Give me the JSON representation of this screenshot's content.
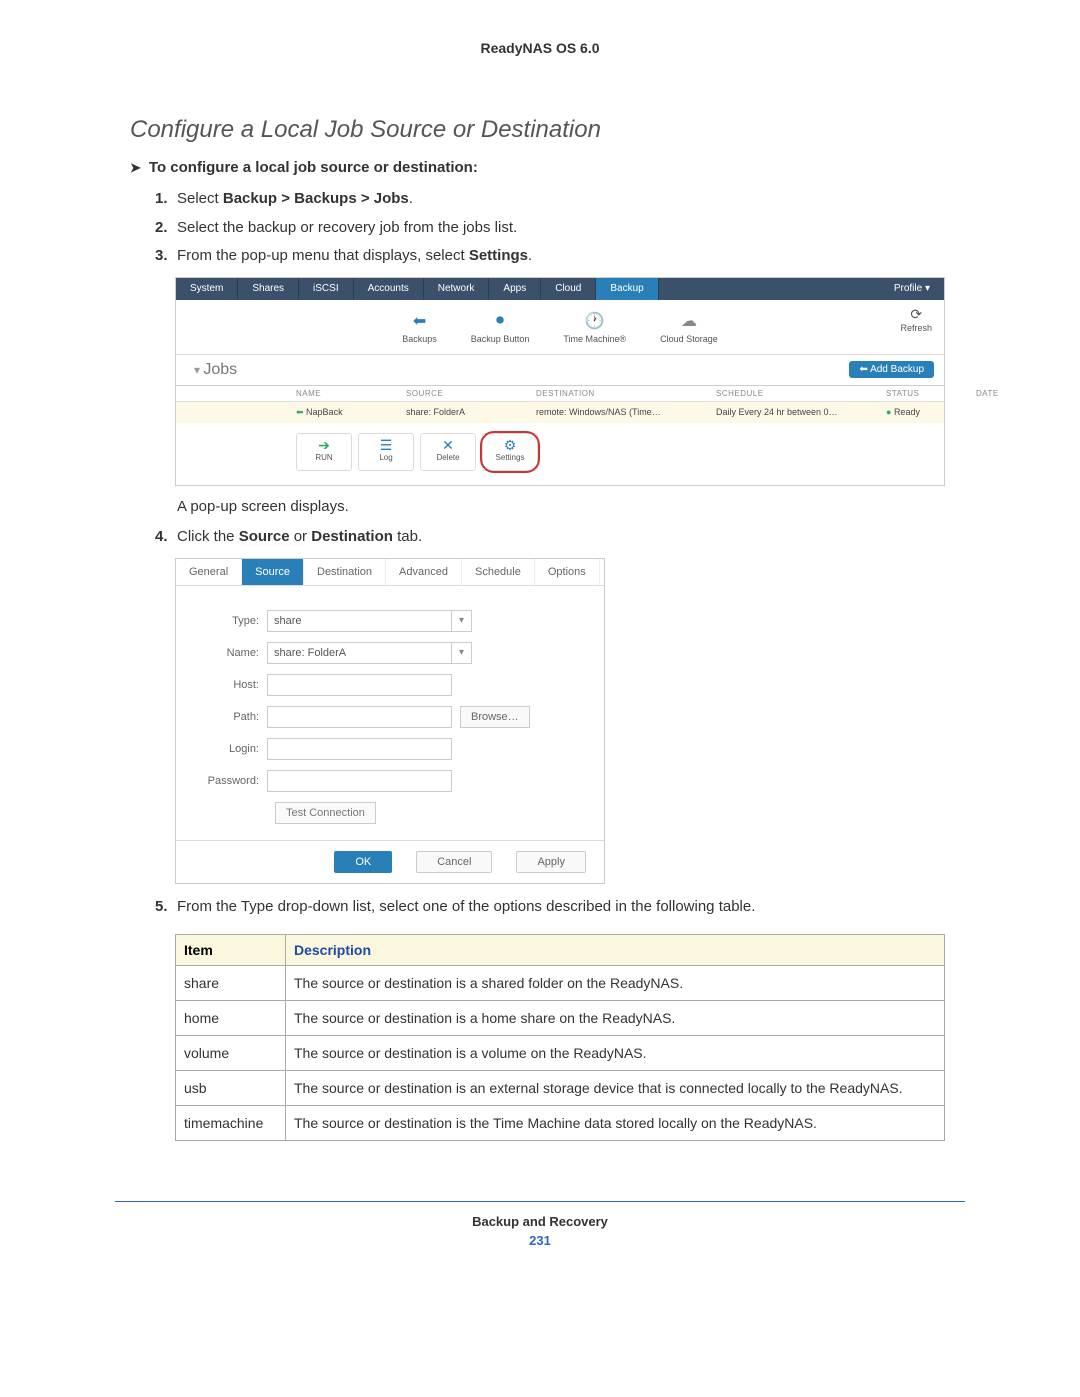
{
  "doc": {
    "header_title": "ReadyNAS OS 6.0",
    "section_title": "Configure a Local Job Source or Destination",
    "to_line": "To configure a local job source or destination:",
    "steps": {
      "s1_pre": "Select ",
      "s1_bold": "Backup > Backups > Jobs",
      "s1_post": ".",
      "s2": "Select the backup or recovery job from the jobs list.",
      "s3_pre": "From the pop-up menu that displays, select ",
      "s3_bold": "Settings",
      "s3_post": ".",
      "popup_line": "A pop-up screen displays.",
      "s4_pre": "Click the ",
      "s4_b1": "Source",
      "s4_mid": " or ",
      "s4_b2": "Destination",
      "s4_post": " tab.",
      "s5": "From the Type drop-down list, select one of the options described in the following table."
    },
    "footer_title": "Backup and Recovery",
    "page_number": "231"
  },
  "shot1": {
    "tabs": [
      "System",
      "Shares",
      "iSCSI",
      "Accounts",
      "Network",
      "Apps",
      "Cloud",
      "Backup"
    ],
    "profile": "Profile ▾",
    "icons": {
      "backups": "Backups",
      "backup_button": "Backup Button",
      "time_machine": "Time Machine®",
      "cloud_storage": "Cloud Storage",
      "refresh": "Refresh"
    },
    "jobs_title": "Jobs",
    "add_backup": "⬅ Add Backup",
    "thead": [
      "NAME",
      "SOURCE",
      "DESTINATION",
      "SCHEDULE",
      "STATUS",
      "DATE"
    ],
    "row": {
      "name": "NapBack",
      "source": "share: FolderA",
      "dest": "remote: Windows/NAS (Time…",
      "schedule": "Daily Every 24 hr between 0…",
      "status": "Ready",
      "date": ""
    },
    "actions": {
      "run": "RUN",
      "log": "Log",
      "delete": "Delete",
      "settings": "Settings"
    }
  },
  "shot2": {
    "tabs": [
      "General",
      "Source",
      "Destination",
      "Advanced",
      "Schedule",
      "Options"
    ],
    "labels": {
      "type": "Type:",
      "name": "Name:",
      "host": "Host:",
      "path": "Path:",
      "login": "Login:",
      "password": "Password:"
    },
    "values": {
      "type": "share",
      "name": "share: FolderA"
    },
    "browse": "Browse…",
    "test": "Test Connection",
    "buttons": {
      "ok": "OK",
      "cancel": "Cancel",
      "apply": "Apply"
    }
  },
  "table": {
    "h1": "Item",
    "h2": "Description",
    "rows": [
      {
        "item": "share",
        "desc": "The source or destination is a shared folder on the ReadyNAS."
      },
      {
        "item": "home",
        "desc": "The source or destination is a home share on the ReadyNAS."
      },
      {
        "item": "volume",
        "desc": "The source or destination is a volume on the ReadyNAS."
      },
      {
        "item": "usb",
        "desc": "The source or destination is an external storage device that is connected locally to the ReadyNAS."
      },
      {
        "item": "timemachine",
        "desc": "The source or destination is the Time Machine data stored locally on the ReadyNAS."
      }
    ]
  }
}
